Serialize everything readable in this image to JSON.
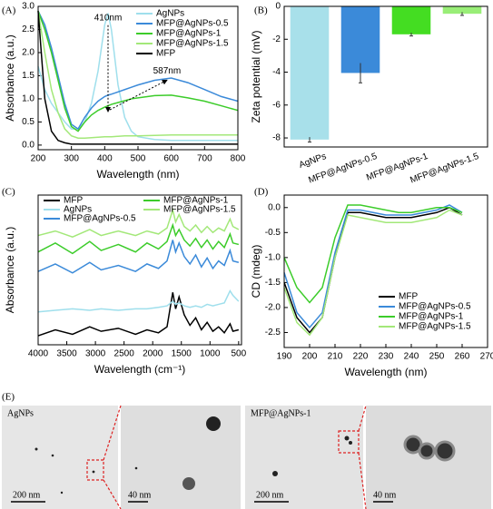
{
  "chart_data": [
    {
      "type": "line",
      "panel_label": "(A)",
      "xlabel": "Wavelength (nm)",
      "ylabel": "Absorbance (a.u.)",
      "x": [
        200,
        220,
        240,
        260,
        280,
        300,
        320,
        340,
        360,
        380,
        400,
        410,
        420,
        440,
        460,
        480,
        500,
        550,
        600,
        650,
        700,
        750,
        800
      ],
      "xlim": [
        200,
        800
      ],
      "xticks": [
        200,
        300,
        400,
        500,
        600,
        700,
        800
      ],
      "ylim": [
        -0.1,
        3.0
      ],
      "yticks": [
        {
          "value": 0,
          "label": "0.0"
        },
        {
          "value": 0.5,
          "label": "0.5"
        },
        {
          "value": 1,
          "label": "1.0"
        },
        {
          "value": 1.5,
          "label": "1.5"
        },
        {
          "value": 2,
          "label": "2.0"
        },
        {
          "value": 2.5,
          "label": "2.5"
        },
        {
          "value": 3,
          "label": "3.0"
        }
      ],
      "legend": "upper right",
      "annotations": [
        {
          "text": "410nm",
          "x": 410,
          "y": 2.75
        },
        {
          "text": "587nm",
          "x": 587,
          "y": 1.6
        }
      ],
      "series": [
        {
          "name": "AgNPs",
          "color": "#9fdfec",
          "values": [
            1.7,
            1.2,
            0.9,
            0.7,
            0.5,
            0.35,
            0.35,
            0.5,
            0.9,
            1.6,
            2.6,
            2.85,
            2.5,
            1.3,
            0.6,
            0.3,
            0.18,
            0.12,
            0.1,
            0.1,
            0.1,
            0.1,
            0.1
          ]
        },
        {
          "name": "MFP@AgNPs-0.5",
          "color": "#3b8ad9",
          "values": [
            2.9,
            2.6,
            2.1,
            1.5,
            0.9,
            0.45,
            0.35,
            0.6,
            0.8,
            0.95,
            1.05,
            1.08,
            1.1,
            1.15,
            1.2,
            1.25,
            1.3,
            1.4,
            1.45,
            1.35,
            1.2,
            1.05,
            0.95
          ]
        },
        {
          "name": "MFP@AgNPs-1",
          "color": "#3ccc2a",
          "values": [
            2.9,
            2.5,
            2.0,
            1.4,
            0.8,
            0.4,
            0.3,
            0.5,
            0.65,
            0.75,
            0.82,
            0.85,
            0.88,
            0.92,
            0.96,
            1.0,
            1.02,
            1.07,
            1.08,
            1.02,
            0.95,
            0.85,
            0.75
          ]
        },
        {
          "name": "MFP@AgNPs-1.5",
          "color": "#a3e879",
          "values": [
            2.9,
            2.0,
            1.2,
            0.7,
            0.35,
            0.2,
            0.15,
            0.15,
            0.16,
            0.17,
            0.18,
            0.18,
            0.18,
            0.19,
            0.2,
            0.2,
            0.2,
            0.21,
            0.22,
            0.22,
            0.22,
            0.22,
            0.22
          ]
        },
        {
          "name": "MFP",
          "color": "#000000",
          "values": [
            2.9,
            1.0,
            0.3,
            0.1,
            0.05,
            0.02,
            0.02,
            0.02,
            0.02,
            0.02,
            0.02,
            0.02,
            0.02,
            0.02,
            0.02,
            0.02,
            0.02,
            0.02,
            0.02,
            0.02,
            0.02,
            0.02,
            0.02
          ]
        }
      ]
    },
    {
      "type": "bar",
      "panel_label": "(B)",
      "ylabel": "Zeta potential (mV)",
      "categories": [
        "AgNPs",
        "MFP@AgNPs-0.5",
        "MFP@AgNPs-1",
        "MFP@AgNPs-1.5"
      ],
      "values": [
        -8.1,
        -4.05,
        -1.7,
        -0.45
      ],
      "errors": [
        0.15,
        0.6,
        0.1,
        0.1
      ],
      "colors": [
        "#a8e0ea",
        "#3b8ad9",
        "#44dd22",
        "#99ee77"
      ],
      "ylim": [
        -8.55,
        0
      ],
      "yticks": [
        -8,
        -6,
        -4,
        -2,
        0
      ]
    },
    {
      "type": "line",
      "panel_label": "(C)",
      "xlabel": "Wavelength (cm⁻¹)",
      "ylabel": "Absorbance (a.u.)",
      "x": [
        4000,
        3700,
        3400,
        3100,
        2900,
        2600,
        2300,
        2100,
        1900,
        1750,
        1650,
        1600,
        1540,
        1450,
        1350,
        1250,
        1150,
        1050,
        950,
        850,
        750,
        650,
        600,
        500
      ],
      "xlim": [
        4000,
        450
      ],
      "xticks": [
        4000,
        3500,
        3000,
        2500,
        2000,
        1500,
        1000,
        500
      ],
      "ylim": [
        0,
        10
      ],
      "legend": "upper center",
      "series": [
        {
          "name": "MFP",
          "color": "#000000",
          "values": [
            0.6,
            1.0,
            0.7,
            1.2,
            0.9,
            1.1,
            0.7,
            1.0,
            0.8,
            1.2,
            3.5,
            2.4,
            3.2,
            2.0,
            1.3,
            1.8,
            1.0,
            1.5,
            0.9,
            1.2,
            0.8,
            1.4,
            0.9,
            1.0
          ]
        },
        {
          "name": "AgNPs",
          "color": "#9fdfec",
          "values": [
            2.2,
            2.3,
            2.4,
            2.3,
            2.4,
            2.3,
            2.4,
            2.4,
            2.5,
            2.6,
            2.9,
            2.7,
            2.8,
            2.6,
            2.5,
            2.6,
            2.5,
            2.7,
            2.6,
            2.7,
            2.8,
            3.6,
            3.3,
            2.9
          ]
        },
        {
          "name": "MFP@AgNPs-0.5",
          "color": "#3b8ad9",
          "values": [
            4.9,
            5.4,
            4.8,
            5.5,
            5.0,
            5.3,
            4.9,
            5.4,
            5.1,
            5.6,
            7.0,
            6.2,
            6.8,
            5.9,
            5.4,
            6.0,
            5.2,
            5.8,
            5.1,
            5.6,
            5.3,
            6.3,
            5.6,
            5.5
          ]
        },
        {
          "name": "MFP@AgNPs-1",
          "color": "#3ccc2a",
          "values": [
            6.2,
            6.8,
            6.1,
            6.9,
            6.3,
            6.7,
            6.2,
            6.8,
            6.4,
            6.9,
            8.0,
            7.3,
            7.7,
            7.0,
            6.6,
            7.1,
            6.5,
            7.0,
            6.4,
            6.9,
            6.5,
            7.4,
            6.8,
            6.7
          ]
        },
        {
          "name": "MFP@AgNPs-1.5",
          "color": "#a3e879",
          "values": [
            7.3,
            7.6,
            7.2,
            7.7,
            7.3,
            7.6,
            7.3,
            7.6,
            7.4,
            7.8,
            9.0,
            8.2,
            8.7,
            7.9,
            7.6,
            8.0,
            7.5,
            7.9,
            7.5,
            7.8,
            7.6,
            8.4,
            7.9,
            7.7
          ]
        }
      ]
    },
    {
      "type": "line",
      "panel_label": "(D)",
      "xlabel": "Wavelength (nm)",
      "ylabel": "CD (mdeg)",
      "x": [
        190,
        195,
        200,
        205,
        210,
        215,
        220,
        225,
        230,
        235,
        240,
        245,
        250,
        255,
        260
      ],
      "xlim": [
        190,
        270
      ],
      "xticks": [
        190,
        200,
        210,
        220,
        230,
        240,
        250,
        260,
        270
      ],
      "ylim": [
        -2.8,
        0.25
      ],
      "yticks": [
        {
          "value": -2.5,
          "label": "-2.5"
        },
        {
          "value": -2,
          "label": "-2.0"
        },
        {
          "value": -1.5,
          "label": "-1.5"
        },
        {
          "value": -1,
          "label": "-1.0"
        },
        {
          "value": -0.5,
          "label": "-0.5"
        },
        {
          "value": 0,
          "label": "0.0"
        }
      ],
      "legend": "lower right",
      "series": [
        {
          "name": "MFP",
          "color": "#000000",
          "values": [
            -1.5,
            -2.2,
            -2.5,
            -2.2,
            -1.0,
            -0.1,
            -0.1,
            -0.15,
            -0.2,
            -0.2,
            -0.2,
            -0.15,
            -0.1,
            0,
            -0.15
          ]
        },
        {
          "name": "MFP@AgNPs-0.5",
          "color": "#3b8ad9",
          "values": [
            -1.3,
            -2.1,
            -2.4,
            -2.1,
            -0.9,
            -0.05,
            -0.05,
            -0.1,
            -0.15,
            -0.15,
            -0.15,
            -0.1,
            -0.05,
            0.05,
            -0.1
          ]
        },
        {
          "name": "MFP@AgNPs-1",
          "color": "#3ccc2a",
          "values": [
            -1.0,
            -1.6,
            -1.9,
            -1.6,
            -0.6,
            0.05,
            0.05,
            0,
            -0.05,
            -0.1,
            -0.1,
            -0.05,
            0,
            0,
            -0.1
          ]
        },
        {
          "name": "MFP@AgNPs-1.5",
          "color": "#a3e879",
          "values": [
            -1.6,
            -2.3,
            -2.55,
            -2.2,
            -1.0,
            -0.15,
            -0.2,
            -0.25,
            -0.3,
            -0.3,
            -0.3,
            -0.25,
            -0.2,
            -0.05,
            -0.15
          ]
        }
      ]
    }
  ],
  "panel_e": {
    "label": "(E)",
    "images": [
      {
        "caption": "AgNPs",
        "scale": "200 nm"
      },
      {
        "scale": "40 nm"
      },
      {
        "caption": "MFP@AgNPs-1",
        "scale": "200 nm"
      },
      {
        "scale": "40 nm"
      }
    ]
  }
}
